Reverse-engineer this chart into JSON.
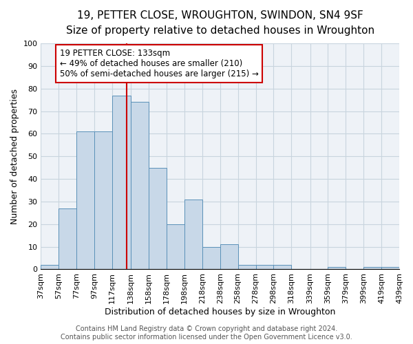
{
  "title": "19, PETTER CLOSE, WROUGHTON, SWINDON, SN4 9SF",
  "subtitle": "Size of property relative to detached houses in Wroughton",
  "xlabel": "Distribution of detached houses by size in Wroughton",
  "ylabel": "Number of detached properties",
  "bar_left_edges": [
    37,
    57,
    77,
    97,
    117,
    138,
    158,
    178,
    198,
    218,
    238,
    258,
    278,
    298,
    318,
    339,
    359,
    379,
    399,
    419
  ],
  "bar_widths": [
    20,
    20,
    20,
    20,
    21,
    20,
    20,
    20,
    20,
    20,
    20,
    20,
    20,
    20,
    21,
    20,
    20,
    20,
    20,
    20
  ],
  "bar_heights": [
    2,
    27,
    61,
    61,
    77,
    74,
    45,
    20,
    31,
    10,
    11,
    2,
    2,
    2,
    0,
    0,
    1,
    0,
    1,
    1
  ],
  "bar_color": "#c8d8e8",
  "bar_edge_color": "#5a90b8",
  "bar_edge_width": 0.7,
  "red_line_x": 133,
  "red_line_color": "#cc0000",
  "annotation_text": "19 PETTER CLOSE: 133sqm\n← 49% of detached houses are smaller (210)\n50% of semi-detached houses are larger (215) →",
  "annotation_box_color": "white",
  "annotation_box_edge_color": "#cc0000",
  "ylim": [
    0,
    100
  ],
  "yticks": [
    0,
    10,
    20,
    30,
    40,
    50,
    60,
    70,
    80,
    90,
    100
  ],
  "xtick_labels": [
    "37sqm",
    "57sqm",
    "77sqm",
    "97sqm",
    "117sqm",
    "138sqm",
    "158sqm",
    "178sqm",
    "198sqm",
    "218sqm",
    "238sqm",
    "258sqm",
    "278sqm",
    "298sqm",
    "318sqm",
    "339sqm",
    "359sqm",
    "379sqm",
    "399sqm",
    "419sqm",
    "439sqm"
  ],
  "grid_color": "#c8d4de",
  "background_color": "#eef2f7",
  "footer_lines": [
    "Contains HM Land Registry data © Crown copyright and database right 2024.",
    "Contains public sector information licensed under the Open Government Licence v3.0."
  ],
  "title_fontsize": 11,
  "subtitle_fontsize": 10,
  "axis_label_fontsize": 9,
  "tick_fontsize": 8,
  "annotation_fontsize": 8.5,
  "footer_fontsize": 7
}
